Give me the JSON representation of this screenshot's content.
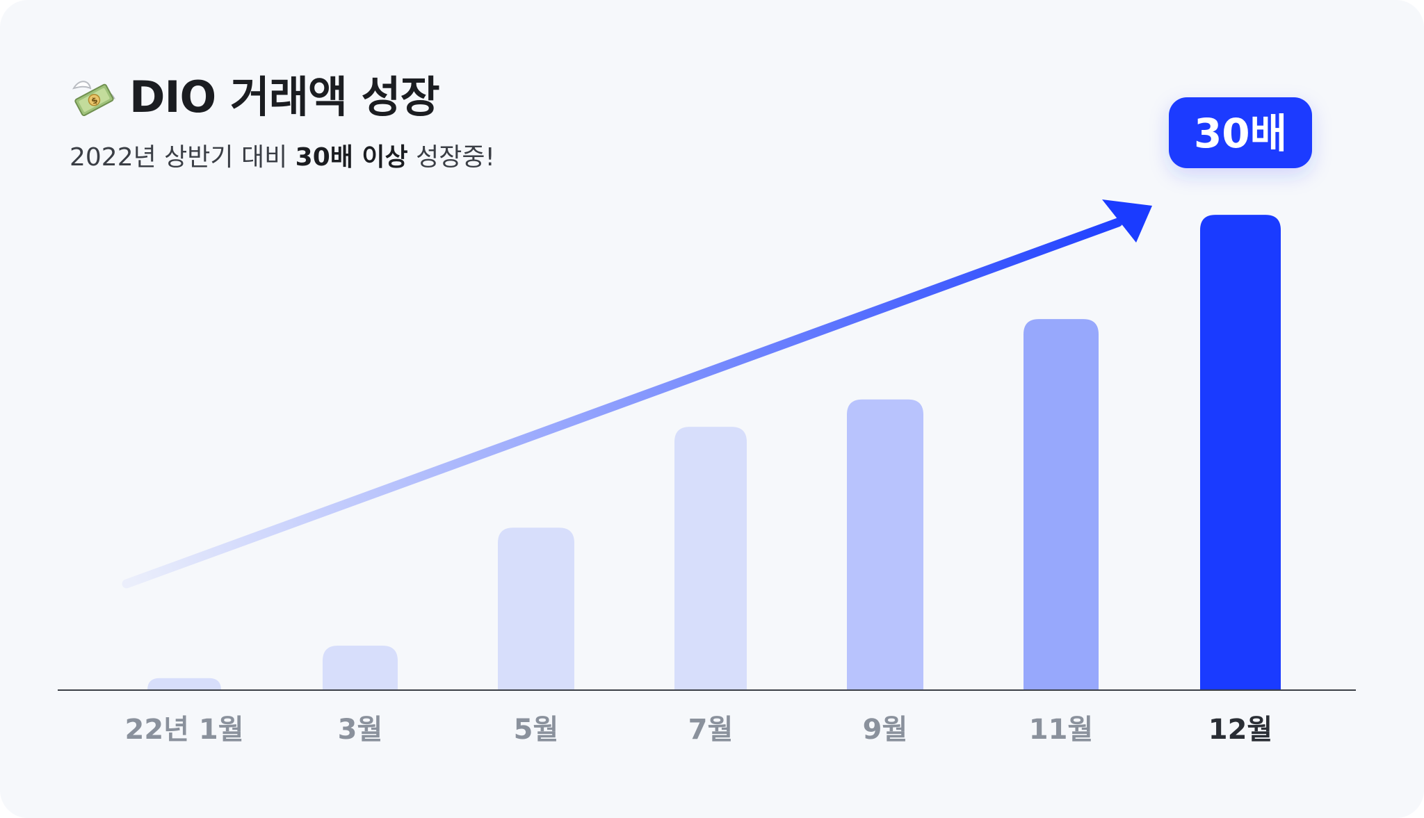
{
  "header": {
    "icon": "money-with-wings-icon",
    "title": "DIO 거래액 성장",
    "subtitle_prefix": "2022년 상반기 대비 ",
    "subtitle_bold": "30배 이상",
    "subtitle_suffix": " 성장중!"
  },
  "colors": {
    "accent": "#1a3bff",
    "bar_light": "#d7defb",
    "bar_mid": "#b8c3fd",
    "bar_strong": "#97a8fc",
    "tick_muted": "#8a919c",
    "tick_active": "#2a2e35",
    "axis": "#3a3e45",
    "badge_text": "#ffffff"
  },
  "chart_data": {
    "type": "bar",
    "title": "DIO 거래액 성장",
    "categories": [
      "22년 1월",
      "3월",
      "5월",
      "7월",
      "9월",
      "11월",
      "12월"
    ],
    "values": [
      0.7,
      2.6,
      9.5,
      15.4,
      17.0,
      21.7,
      27.8
    ],
    "highlight_index": 6,
    "badge": "30배",
    "trend_arrow": true,
    "xlabel": "",
    "ylabel": "",
    "ylim": [
      0,
      30
    ],
    "grid": false,
    "legend": "none"
  }
}
